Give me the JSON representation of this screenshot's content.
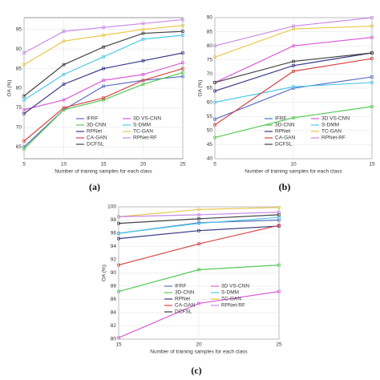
{
  "captions": [
    "(a)",
    "(b)",
    "(c)"
  ],
  "chart_data": [
    {
      "type": "line",
      "x_label": "Number of training samples for each class",
      "y_label": "OA (%)",
      "x": [
        5,
        10,
        15,
        20,
        25
      ],
      "xlim": [
        5,
        25
      ],
      "xticks": [
        5,
        10,
        15,
        20,
        25
      ],
      "ylim": [
        62,
        98
      ],
      "yticks": [
        65,
        70,
        75,
        80,
        85,
        90,
        95
      ],
      "grid": true,
      "series": [
        {
          "name": "IFRF",
          "color": "#5a6fc4",
          "values": [
            65,
            74.5,
            80.5,
            82,
            83
          ]
        },
        {
          "name": "3D VS-CNN",
          "color": "#d85cd8",
          "values": [
            74.5,
            77,
            82,
            83.5,
            86.5
          ]
        },
        {
          "name": "3D-CNN",
          "color": "#55c855",
          "values": [
            64.5,
            74.5,
            77,
            81,
            84
          ]
        },
        {
          "name": "S-DMM",
          "color": "#4dc8e8",
          "values": [
            77,
            83.5,
            88,
            92.5,
            93.5
          ]
        },
        {
          "name": "RPNet",
          "color": "#3a3a8a",
          "values": [
            73.5,
            81,
            85,
            87,
            89
          ]
        },
        {
          "name": "TC-GAN",
          "color": "#e8c84a",
          "values": [
            86,
            92,
            93.5,
            95,
            96
          ]
        },
        {
          "name": "CA-GAN",
          "color": "#d84444",
          "values": [
            66.5,
            75,
            77.5,
            82,
            85
          ]
        },
        {
          "name": "RPNet-RF",
          "color": "#c88ae8",
          "values": [
            89,
            94.5,
            95.5,
            96.5,
            97.5
          ]
        },
        {
          "name": "DCFSL",
          "color": "#444444",
          "values": [
            78,
            86,
            90.5,
            94,
            94.5
          ]
        }
      ]
    },
    {
      "type": "line",
      "x_label": "Number of training samples for each class",
      "y_label": "OA (%)",
      "x": [
        5,
        10,
        15
      ],
      "xlim": [
        5,
        15
      ],
      "xticks": [
        5,
        10,
        15
      ],
      "ylim": [
        40,
        90
      ],
      "yticks": [
        40,
        45,
        50,
        55,
        60,
        65,
        70,
        75,
        80,
        85,
        90
      ],
      "grid": true,
      "series": [
        {
          "name": "IFRF",
          "color": "#5a6fc4",
          "values": [
            54,
            65,
            69
          ]
        },
        {
          "name": "3D VS-CNN",
          "color": "#d85cd8",
          "values": [
            67,
            80,
            83
          ]
        },
        {
          "name": "3D-CNN",
          "color": "#55c855",
          "values": [
            47.5,
            54.5,
            58.5
          ]
        },
        {
          "name": "S-DMM",
          "color": "#4dc8e8",
          "values": [
            60,
            65.5,
            67
          ]
        },
        {
          "name": "RPNet",
          "color": "#3a3a8a",
          "values": [
            64,
            73,
            77.5
          ]
        },
        {
          "name": "TC-GAN",
          "color": "#e8c84a",
          "values": [
            76,
            86,
            87
          ]
        },
        {
          "name": "CA-GAN",
          "color": "#d84444",
          "values": [
            52,
            71,
            75.5
          ]
        },
        {
          "name": "RPNet-RF",
          "color": "#c88ae8",
          "values": [
            80,
            87,
            90
          ]
        },
        {
          "name": "DCFSL",
          "color": "#444444",
          "values": [
            67,
            74.5,
            77.5
          ]
        }
      ]
    },
    {
      "type": "line",
      "x_label": "Number of training samples for each class",
      "y_label": "OA (%)",
      "x": [
        15,
        20,
        25
      ],
      "xlim": [
        15,
        25
      ],
      "xticks": [
        15,
        20,
        25
      ],
      "ylim": [
        80,
        100
      ],
      "yticks": [
        80,
        82,
        84,
        86,
        88,
        90,
        92,
        94,
        96,
        98,
        100
      ],
      "grid": true,
      "series": [
        {
          "name": "IFRF",
          "color": "#5a6fc4",
          "values": [
            96,
            97.6,
            98
          ]
        },
        {
          "name": "3D VS-CNN",
          "color": "#d85cd8",
          "values": [
            80.2,
            85.4,
            87.2
          ]
        },
        {
          "name": "3D-CNN",
          "color": "#55c855",
          "values": [
            87.2,
            90.5,
            91.2
          ]
        },
        {
          "name": "S-DMM",
          "color": "#4dc8e8",
          "values": [
            96,
            97.5,
            98.4
          ]
        },
        {
          "name": "RPNet",
          "color": "#3a3a8a",
          "values": [
            95.2,
            96.4,
            97.1
          ]
        },
        {
          "name": "TC-GAN",
          "color": "#e8c84a",
          "values": [
            98.5,
            99.6,
            99.9
          ]
        },
        {
          "name": "CA-GAN",
          "color": "#d84444",
          "values": [
            91.2,
            94.4,
            97.2
          ]
        },
        {
          "name": "RPNet-RF",
          "color": "#c88ae8",
          "values": [
            98.5,
            98.8,
            99.2
          ]
        },
        {
          "name": "DCFSL",
          "color": "#444444",
          "values": [
            97.5,
            98.2,
            98.8
          ]
        }
      ]
    }
  ]
}
